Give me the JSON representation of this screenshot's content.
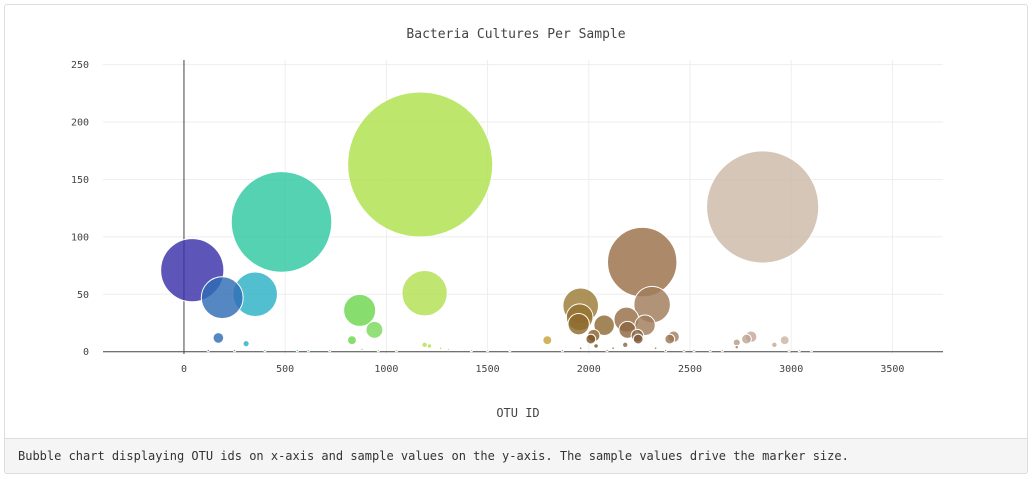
{
  "panel": {
    "footer_text": "Bubble chart displaying OTU ids on x-axis and sample values on the y-axis. The sample values drive the marker size."
  },
  "chart_data": {
    "type": "scatter",
    "title": "Bacteria Cultures Per Sample",
    "xlabel": "OTU ID",
    "ylabel": "",
    "xlim": [
      -400,
      3750
    ],
    "ylim": [
      -2,
      254
    ],
    "xticks": [
      0,
      500,
      1000,
      1500,
      2000,
      2500,
      3000,
      3500
    ],
    "yticks": [
      0,
      50,
      100,
      150,
      200,
      250
    ],
    "grid": true,
    "legend": "none",
    "marker_size": "sample value",
    "points": [
      {
        "x": 41,
        "y": 71,
        "color": "#3a2fa8"
      },
      {
        "x": 189,
        "y": 47,
        "color": "#2f6db4"
      },
      {
        "x": 352,
        "y": 50,
        "color": "#2bb1c4"
      },
      {
        "x": 482,
        "y": 113,
        "color": "#2ec8a0"
      },
      {
        "x": 1167,
        "y": 163,
        "color": "#aee24c"
      },
      {
        "x": 2859,
        "y": 126,
        "color": "#cdb9a8"
      },
      {
        "x": 2264,
        "y": 78,
        "color": "#9a7048"
      },
      {
        "x": 1189,
        "y": 51,
        "color": "#b2df52"
      },
      {
        "x": 868,
        "y": 36,
        "color": "#6cd64e"
      },
      {
        "x": 941,
        "y": 19,
        "color": "#7cd95a"
      },
      {
        "x": 1960,
        "y": 40,
        "color": "#9b7a34"
      },
      {
        "x": 1955,
        "y": 30,
        "color": "#957130"
      },
      {
        "x": 1950,
        "y": 24,
        "color": "#8c6a2c"
      },
      {
        "x": 2313,
        "y": 41,
        "color": "#a07c5a"
      },
      {
        "x": 2186,
        "y": 28,
        "color": "#956e44"
      },
      {
        "x": 2076,
        "y": 23,
        "color": "#8f6a36"
      },
      {
        "x": 2278,
        "y": 23,
        "color": "#a07c5a"
      },
      {
        "x": 2191,
        "y": 19,
        "color": "#8c6640"
      },
      {
        "x": 2024,
        "y": 14,
        "color": "#8a6230"
      },
      {
        "x": 2010,
        "y": 11,
        "color": "#7c5626"
      },
      {
        "x": 2240,
        "y": 14,
        "color": "#8a6642"
      },
      {
        "x": 2244,
        "y": 11,
        "color": "#7e5a38"
      },
      {
        "x": 2419,
        "y": 13,
        "color": "#a4805e"
      },
      {
        "x": 2400,
        "y": 11,
        "color": "#9a7656"
      },
      {
        "x": 2802,
        "y": 13,
        "color": "#c4a898"
      },
      {
        "x": 2779,
        "y": 11,
        "color": "#bfa595"
      },
      {
        "x": 2968,
        "y": 10,
        "color": "#cab5a4"
      },
      {
        "x": 2731,
        "y": 8,
        "color": "#b89c88"
      },
      {
        "x": 1795,
        "y": 10,
        "color": "#c9a43a"
      },
      {
        "x": 170,
        "y": 12,
        "color": "#2f6db4"
      },
      {
        "x": 830,
        "y": 10,
        "color": "#6cd64e"
      },
      {
        "x": 307,
        "y": 7,
        "color": "#2bb1c4"
      },
      {
        "x": 2036,
        "y": 5,
        "color": "#7c5626"
      },
      {
        "x": 2917,
        "y": 6,
        "color": "#c4a898"
      },
      {
        "x": 1189,
        "y": 6,
        "color": "#b2df52"
      },
      {
        "x": 1213,
        "y": 5,
        "color": "#b2df52"
      },
      {
        "x": 1268,
        "y": 3,
        "color": "#b2df52"
      },
      {
        "x": 2731,
        "y": 4,
        "color": "#a0826c"
      },
      {
        "x": 2180,
        "y": 6,
        "color": "#8a6640"
      },
      {
        "x": 2330,
        "y": 3,
        "color": "#9a7656"
      },
      {
        "x": 2120,
        "y": 3,
        "color": "#8a6640"
      },
      {
        "x": 1960,
        "y": 3,
        "color": "#8c6a2c"
      },
      {
        "x": 1307,
        "y": 2,
        "color": "#b2df52"
      },
      {
        "x": 880,
        "y": 2,
        "color": "#6cd64e"
      },
      {
        "x": 1500,
        "y": 1,
        "color": "#c2dd64"
      },
      {
        "x": 1420,
        "y": 1,
        "color": "#bcdc5a"
      },
      {
        "x": 1610,
        "y": 1,
        "color": "#d0d070"
      },
      {
        "x": 1050,
        "y": 1,
        "color": "#a8e050"
      },
      {
        "x": 400,
        "y": 1,
        "color": "#3ab8c0"
      },
      {
        "x": 615,
        "y": 1,
        "color": "#46c896"
      },
      {
        "x": 720,
        "y": 1,
        "color": "#5ad07a"
      },
      {
        "x": 2520,
        "y": 1,
        "color": "#ac8c70"
      },
      {
        "x": 2600,
        "y": 1,
        "color": "#b4967e"
      },
      {
        "x": 2660,
        "y": 1,
        "color": "#b89c86"
      },
      {
        "x": 3040,
        "y": 1,
        "color": "#d2c0b2"
      },
      {
        "x": 3100,
        "y": 1,
        "color": "#d6c6b8"
      },
      {
        "x": 120,
        "y": 1,
        "color": "#3450b0"
      },
      {
        "x": 250,
        "y": 1,
        "color": "#2f8cba"
      },
      {
        "x": 560,
        "y": 1,
        "color": "#38c4a8"
      },
      {
        "x": 960,
        "y": 1,
        "color": "#90dc52"
      },
      {
        "x": 1870,
        "y": 1,
        "color": "#b09040"
      },
      {
        "x": 2090,
        "y": 1,
        "color": "#8a6638"
      },
      {
        "x": 2380,
        "y": 1,
        "color": "#9a7656"
      },
      {
        "x": 2470,
        "y": 1,
        "color": "#a4805e"
      },
      {
        "x": 2990,
        "y": 1,
        "color": "#ccb8a8"
      }
    ]
  }
}
